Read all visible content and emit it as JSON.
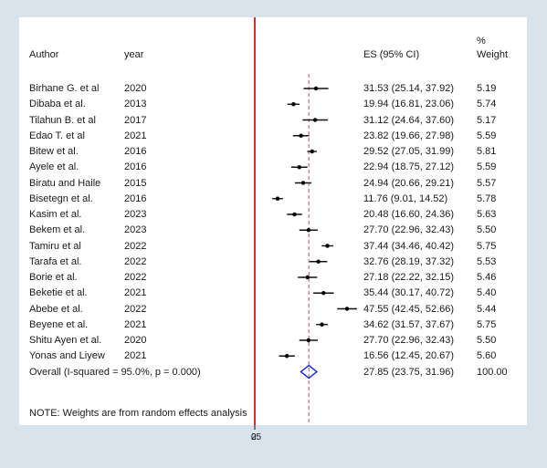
{
  "chart_data": {
    "type": "forest",
    "header": {
      "author": "Author",
      "year": "year",
      "es": "ES (95% CI)",
      "weight_top": "%",
      "weight": "Weight"
    },
    "studies": [
      {
        "author": "Birhane G. et al",
        "year": "2020",
        "es": 31.53,
        "lo": 25.14,
        "hi": 37.92,
        "ci_text": "31.53 (25.14, 37.92)",
        "weight": "5.19"
      },
      {
        "author": "Dibaba et al.",
        "year": "2013",
        "es": 19.94,
        "lo": 16.81,
        "hi": 23.06,
        "ci_text": "19.94 (16.81, 23.06)",
        "weight": "5.74"
      },
      {
        "author": "Tilahun B. et al",
        "year": "2017",
        "es": 31.12,
        "lo": 24.64,
        "hi": 37.6,
        "ci_text": "31.12 (24.64, 37.60)",
        "weight": "5.17"
      },
      {
        "author": "Edao T. et al",
        "year": "2021",
        "es": 23.82,
        "lo": 19.66,
        "hi": 27.98,
        "ci_text": "23.82 (19.66, 27.98)",
        "weight": "5.59"
      },
      {
        "author": "Bitew et al.",
        "year": "2016",
        "es": 29.52,
        "lo": 27.05,
        "hi": 31.99,
        "ci_text": "29.52 (27.05, 31.99)",
        "weight": "5.81"
      },
      {
        "author": "Ayele et al.",
        "year": "2016",
        "es": 22.94,
        "lo": 18.75,
        "hi": 27.12,
        "ci_text": "22.94 (18.75, 27.12)",
        "weight": "5.59"
      },
      {
        "author": "Biratu and Haile",
        "year": "2015",
        "es": 24.94,
        "lo": 20.66,
        "hi": 29.21,
        "ci_text": "24.94 (20.66, 29.21)",
        "weight": "5.57"
      },
      {
        "author": "Bisetegn et al.",
        "year": "2016",
        "es": 11.76,
        "lo": 9.01,
        "hi": 14.52,
        "ci_text": "11.76 (9.01, 14.52)",
        "weight": "5.78"
      },
      {
        "author": "Kasim et al.",
        "year": "2023",
        "es": 20.48,
        "lo": 16.6,
        "hi": 24.36,
        "ci_text": "20.48 (16.60, 24.36)",
        "weight": "5.63"
      },
      {
        "author": "Bekem et al.",
        "year": "2023",
        "es": 27.7,
        "lo": 22.96,
        "hi": 32.43,
        "ci_text": "27.70 (22.96, 32.43)",
        "weight": "5.50"
      },
      {
        "author": "Tamiru et al",
        "year": "2022",
        "es": 37.44,
        "lo": 34.46,
        "hi": 40.42,
        "ci_text": "37.44 (34.46, 40.42)",
        "weight": "5.75"
      },
      {
        "author": "Tarafa et al.",
        "year": "2022",
        "es": 32.76,
        "lo": 28.19,
        "hi": 37.32,
        "ci_text": "32.76 (28.19, 37.32)",
        "weight": "5.53"
      },
      {
        "author": "Borie et al.",
        "year": "2022",
        "es": 27.18,
        "lo": 22.22,
        "hi": 32.15,
        "ci_text": "27.18 (22.22, 32.15)",
        "weight": "5.46"
      },
      {
        "author": "Beketie et al.",
        "year": "2021",
        "es": 35.44,
        "lo": 30.17,
        "hi": 40.72,
        "ci_text": "35.44 (30.17, 40.72)",
        "weight": "5.40"
      },
      {
        "author": "Abebe et al.",
        "year": "2022",
        "es": 47.55,
        "lo": 42.45,
        "hi": 52.66,
        "ci_text": "47.55 (42.45, 52.66)",
        "weight": "5.44"
      },
      {
        "author": "Beyene et al.",
        "year": "2021",
        "es": 34.62,
        "lo": 31.57,
        "hi": 37.67,
        "ci_text": "34.62 (31.57, 37.67)",
        "weight": "5.75"
      },
      {
        "author": "Shitu Ayen et al.",
        "year": "2020",
        "es": 27.7,
        "lo": 22.96,
        "hi": 32.43,
        "ci_text": "27.70 (22.96, 32.43)",
        "weight": "5.50"
      },
      {
        "author": "Yonas and Liyew",
        "year": "2021",
        "es": 16.56,
        "lo": 12.45,
        "hi": 20.67,
        "ci_text": "16.56 (12.45, 20.67)",
        "weight": "5.60"
      }
    ],
    "overall": {
      "label": "Overall  (I-squared = 95.0%, p = 0.000)",
      "es": 27.85,
      "lo": 23.75,
      "hi": 31.96,
      "ci_text": "27.85 (23.75, 31.96)",
      "weight": "100.00"
    },
    "note": "NOTE: Weights are from random effects analysis",
    "x_tick_labels": [
      "0",
      "25"
    ],
    "null_line_value": 0,
    "xlim": [
      0,
      53
    ],
    "colors": {
      "null_line": "#cc0000",
      "overall_line": "#b05070",
      "diamond": "#0b1fd6",
      "ci": "#111111",
      "background": "#d9e3ec",
      "panel": "#ffffff"
    }
  }
}
